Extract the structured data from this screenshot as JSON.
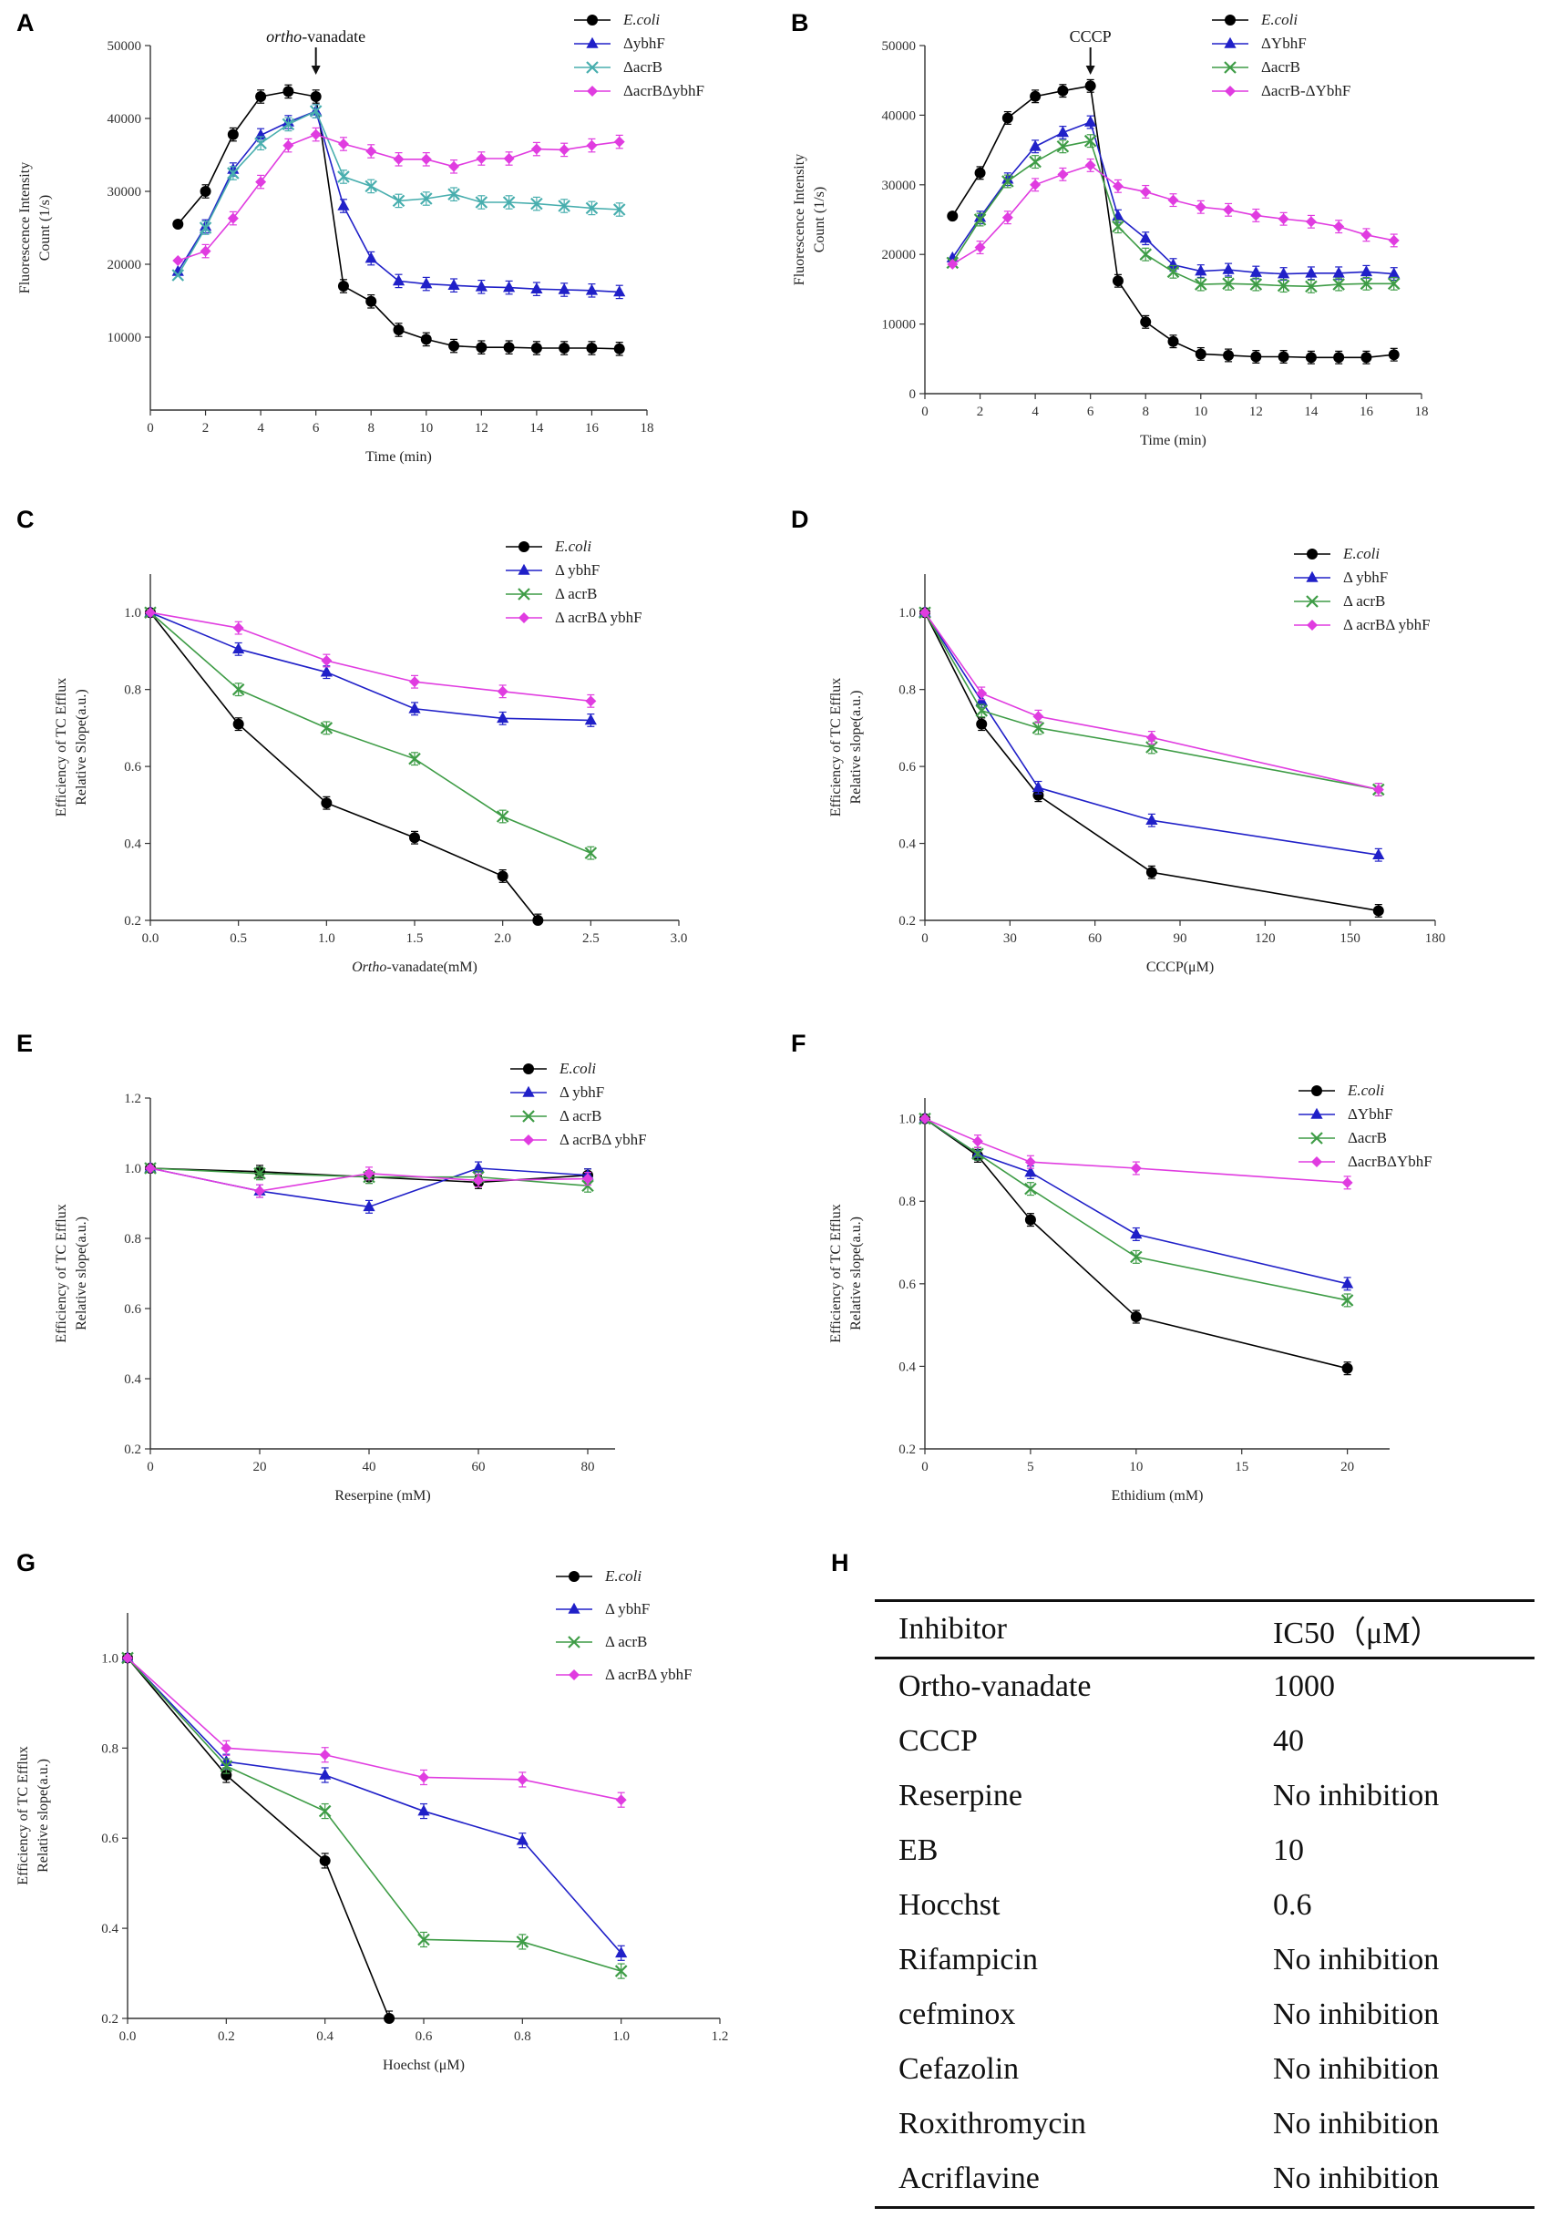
{
  "colors": {
    "E.coli": "#000000",
    "ybhF": "#2020c8",
    "acrB": "#3e9c46",
    "acrB_teal": "#48aeae",
    "double": "#e03ce0"
  },
  "panels": {
    "A": "A",
    "B": "B",
    "C": "C",
    "D": "D",
    "E": "E",
    "F": "F",
    "G": "G",
    "H": "H"
  },
  "chart_data": [
    {
      "panel": "A",
      "type": "line",
      "annotation": "ortho-vanadate",
      "xlabel": "Time (min)",
      "ylabel": [
        "Fluorescence Intensity",
        "Count (1/s)"
      ],
      "xlim": [
        0,
        18
      ],
      "ylim": [
        0,
        50000
      ],
      "xticks": [
        0,
        2,
        4,
        6,
        8,
        10,
        12,
        14,
        16,
        18
      ],
      "yticks": [
        10000,
        20000,
        30000,
        40000,
        50000
      ],
      "series": [
        {
          "name": "E.coli",
          "italic": true,
          "color": "#000000",
          "marker": "circle",
          "x": [
            1,
            2,
            3,
            4,
            5,
            6,
            7,
            8,
            9,
            10,
            11,
            12,
            13,
            14,
            15,
            16,
            17
          ],
          "y": [
            25500,
            30000,
            37800,
            43000,
            43700,
            43000,
            17000,
            14900,
            11000,
            9700,
            8800,
            8600,
            8600,
            8500,
            8500,
            8500,
            8400
          ]
        },
        {
          "name": "ΔybhF",
          "color": "#2020c8",
          "marker": "triangle",
          "x": [
            1,
            2,
            3,
            4,
            5,
            6,
            7,
            8,
            9,
            10,
            11,
            12,
            13,
            14,
            15,
            16,
            17
          ],
          "y": [
            19000,
            25200,
            33000,
            37700,
            39500,
            41000,
            28000,
            20800,
            17700,
            17300,
            17100,
            16900,
            16800,
            16600,
            16500,
            16400,
            16200
          ]
        },
        {
          "name": "ΔacrB",
          "color": "#48aeae",
          "marker": "x",
          "x": [
            1,
            2,
            3,
            4,
            5,
            6,
            7,
            8,
            9,
            10,
            11,
            12,
            13,
            14,
            15,
            16,
            17
          ],
          "y": [
            18500,
            25000,
            32500,
            36600,
            39200,
            41000,
            32000,
            30700,
            28700,
            29000,
            29600,
            28500,
            28500,
            28300,
            28000,
            27700,
            27500
          ]
        },
        {
          "name": "ΔacrBΔybhF",
          "color": "#e03ce0",
          "marker": "diamond",
          "x": [
            1,
            2,
            3,
            4,
            5,
            6,
            7,
            8,
            9,
            10,
            11,
            12,
            13,
            14,
            15,
            16,
            17
          ],
          "y": [
            20500,
            21800,
            26300,
            31300,
            36300,
            37800,
            36500,
            35500,
            34400,
            34400,
            33400,
            34500,
            34500,
            35800,
            35700,
            36300,
            36800
          ]
        }
      ]
    },
    {
      "panel": "B",
      "type": "line",
      "annotation": "CCCP",
      "xlabel": "Time (min)",
      "ylabel": [
        "Fluorescence Intensity",
        "Count (1/s)"
      ],
      "xlim": [
        0,
        18
      ],
      "ylim": [
        0,
        50000
      ],
      "xticks": [
        0,
        2,
        4,
        6,
        8,
        10,
        12,
        14,
        16,
        18
      ],
      "yticks": [
        0,
        10000,
        20000,
        30000,
        40000,
        50000
      ],
      "series": [
        {
          "name": "E.coli",
          "italic": true,
          "color": "#000000",
          "marker": "circle",
          "x": [
            1,
            2,
            3,
            4,
            5,
            6,
            7,
            8,
            9,
            10,
            11,
            12,
            13,
            14,
            15,
            16,
            17
          ],
          "y": [
            25500,
            31700,
            39600,
            42700,
            43500,
            44200,
            16200,
            10300,
            7500,
            5700,
            5500,
            5300,
            5300,
            5200,
            5200,
            5200,
            5600
          ]
        },
        {
          "name": "ΔYbhF",
          "color": "#2020c8",
          "marker": "triangle",
          "x": [
            1,
            2,
            3,
            4,
            5,
            6,
            7,
            8,
            9,
            10,
            11,
            12,
            13,
            14,
            15,
            16,
            17
          ],
          "y": [
            19500,
            25300,
            30800,
            35500,
            37500,
            39000,
            25500,
            22300,
            18500,
            17600,
            17800,
            17400,
            17200,
            17300,
            17300,
            17500,
            17200
          ]
        },
        {
          "name": "ΔacrB",
          "color": "#3e9c46",
          "marker": "x",
          "x": [
            1,
            2,
            3,
            4,
            5,
            6,
            7,
            8,
            9,
            10,
            11,
            12,
            13,
            14,
            15,
            16,
            17
          ],
          "y": [
            18800,
            25000,
            30500,
            33300,
            35500,
            36300,
            24000,
            20000,
            17500,
            15700,
            15800,
            15700,
            15500,
            15400,
            15700,
            15800,
            15800
          ]
        },
        {
          "name": "ΔacrB-ΔYbhF",
          "color": "#e03ce0",
          "marker": "diamond",
          "x": [
            1,
            2,
            3,
            4,
            5,
            6,
            7,
            8,
            9,
            10,
            11,
            12,
            13,
            14,
            15,
            16,
            17
          ],
          "y": [
            18600,
            21000,
            25300,
            30000,
            31500,
            32800,
            29800,
            29000,
            27800,
            26800,
            26400,
            25600,
            25100,
            24700,
            24000,
            22800,
            22000
          ]
        }
      ]
    },
    {
      "panel": "C",
      "type": "line",
      "xlabel": "Ortho-vanadate(mM)",
      "ylabel": [
        "Efficiency of TC Efflux",
        "Relative Slope(a.u.)"
      ],
      "xlim": [
        0,
        3
      ],
      "ylim": [
        0.2,
        1.1
      ],
      "xticks": [
        0.0,
        0.5,
        1.0,
        1.5,
        2.0,
        2.5,
        3.0
      ],
      "yticks": [
        0.2,
        0.4,
        0.6,
        0.8,
        1.0
      ],
      "series": [
        {
          "name": "E.coli",
          "italic": true,
          "color": "#000000",
          "marker": "circle",
          "x": [
            0,
            0.5,
            1.0,
            1.5,
            2.0,
            2.2
          ],
          "y": [
            1.0,
            0.71,
            0.505,
            0.415,
            0.315,
            0.2
          ]
        },
        {
          "name": "Δ ybhF",
          "color": "#2020c8",
          "marker": "triangle",
          "x": [
            0,
            0.5,
            1.0,
            1.5,
            2.0,
            2.5
          ],
          "y": [
            1.0,
            0.905,
            0.845,
            0.75,
            0.725,
            0.72
          ]
        },
        {
          "name": "Δ acrB",
          "color": "#3e9c46",
          "marker": "x",
          "x": [
            0,
            0.5,
            1.0,
            1.5,
            2.0,
            2.5
          ],
          "y": [
            1.0,
            0.8,
            0.7,
            0.62,
            0.47,
            0.375
          ]
        },
        {
          "name": "Δ acrBΔ ybhF",
          "color": "#e03ce0",
          "marker": "diamond",
          "x": [
            0,
            0.5,
            1.0,
            1.5,
            2.0,
            2.5
          ],
          "y": [
            1.0,
            0.96,
            0.875,
            0.82,
            0.795,
            0.77
          ]
        }
      ]
    },
    {
      "panel": "D",
      "type": "line",
      "xlabel": "CCCP(μM)",
      "ylabel": [
        "Efficiency of TC Efflux",
        "Relative slope(a.u.)"
      ],
      "xlim": [
        0,
        180
      ],
      "ylim": [
        0.2,
        1.1
      ],
      "xticks": [
        0,
        30,
        60,
        90,
        120,
        150,
        180
      ],
      "yticks": [
        0.2,
        0.4,
        0.6,
        0.8,
        1.0
      ],
      "series": [
        {
          "name": "E.coli",
          "italic": true,
          "color": "#000000",
          "marker": "circle",
          "x": [
            0,
            20,
            40,
            80,
            160
          ],
          "y": [
            1.0,
            0.71,
            0.525,
            0.325,
            0.225
          ]
        },
        {
          "name": "Δ ybhF",
          "color": "#2020c8",
          "marker": "triangle",
          "x": [
            0,
            20,
            40,
            80,
            160
          ],
          "y": [
            1.0,
            0.77,
            0.545,
            0.46,
            0.37
          ]
        },
        {
          "name": "Δ acrB",
          "color": "#3e9c46",
          "marker": "x",
          "x": [
            0,
            20,
            40,
            80,
            160
          ],
          "y": [
            1.0,
            0.745,
            0.7,
            0.65,
            0.54
          ]
        },
        {
          "name": "Δ acrBΔ ybhF",
          "color": "#e03ce0",
          "marker": "diamond",
          "x": [
            0,
            20,
            40,
            80,
            160
          ],
          "y": [
            1.0,
            0.79,
            0.73,
            0.675,
            0.54
          ]
        }
      ]
    },
    {
      "panel": "E",
      "type": "line",
      "xlabel": "Reserpine (mM)",
      "ylabel": [
        "Efficiency of TC Efflux",
        "Relative slope(a.u.)"
      ],
      "xlim": [
        0,
        85
      ],
      "ylim": [
        0.2,
        1.2
      ],
      "xticks": [
        0,
        20,
        40,
        60,
        80
      ],
      "yticks": [
        0.2,
        0.4,
        0.6,
        0.8,
        1.0,
        1.2
      ],
      "series": [
        {
          "name": "E.coli",
          "italic": true,
          "color": "#000000",
          "marker": "circle",
          "x": [
            0,
            20,
            40,
            60,
            80
          ],
          "y": [
            1.0,
            0.99,
            0.975,
            0.96,
            0.98
          ]
        },
        {
          "name": "Δ ybhF",
          "color": "#2020c8",
          "marker": "triangle",
          "x": [
            0,
            20,
            40,
            60,
            80
          ],
          "y": [
            1.0,
            0.935,
            0.89,
            1.0,
            0.98
          ]
        },
        {
          "name": "Δ acrB",
          "color": "#3e9c46",
          "marker": "x",
          "x": [
            0,
            20,
            40,
            60,
            80
          ],
          "y": [
            1.0,
            0.985,
            0.975,
            0.975,
            0.95
          ]
        },
        {
          "name": "Δ acrBΔ ybhF",
          "color": "#e03ce0",
          "marker": "diamond",
          "x": [
            0,
            20,
            40,
            60,
            80
          ],
          "y": [
            1.0,
            0.935,
            0.985,
            0.965,
            0.97
          ]
        }
      ]
    },
    {
      "panel": "F",
      "type": "line",
      "xlabel": "Ethidium (mM)",
      "ylabel": [
        "Efficiency of TC Efflux",
        "Relative slope(a.u.)"
      ],
      "xlim": [
        0,
        22
      ],
      "ylim": [
        0.2,
        1.05
      ],
      "xticks": [
        0,
        5,
        10,
        15,
        20
      ],
      "yticks": [
        0.2,
        0.4,
        0.6,
        0.8,
        1.0
      ],
      "series": [
        {
          "name": "E.coli",
          "italic": true,
          "color": "#000000",
          "marker": "circle",
          "x": [
            0,
            2.5,
            5,
            10,
            20
          ],
          "y": [
            1.0,
            0.91,
            0.755,
            0.52,
            0.395
          ]
        },
        {
          "name": "ΔYbhF",
          "color": "#2020c8",
          "marker": "triangle",
          "x": [
            0,
            2.5,
            5,
            10,
            20
          ],
          "y": [
            1.0,
            0.915,
            0.87,
            0.72,
            0.6
          ]
        },
        {
          "name": "ΔacrB",
          "color": "#3e9c46",
          "marker": "x",
          "x": [
            0,
            2.5,
            5,
            10,
            20
          ],
          "y": [
            1.0,
            0.915,
            0.83,
            0.665,
            0.56
          ]
        },
        {
          "name": "ΔacrBΔYbhF",
          "color": "#e03ce0",
          "marker": "diamond",
          "x": [
            0,
            2.5,
            5,
            10,
            20
          ],
          "y": [
            1.0,
            0.945,
            0.895,
            0.88,
            0.845
          ]
        }
      ]
    },
    {
      "panel": "G",
      "type": "line",
      "xlabel": "Hoechst (μM)",
      "ylabel": [
        "Efficiency of TC Efflux",
        "Relative slope(a.u.)"
      ],
      "xlim": [
        0,
        1.2
      ],
      "ylim": [
        0.2,
        1.1
      ],
      "xticks": [
        0.0,
        0.2,
        0.4,
        0.6,
        0.8,
        1.0,
        1.2
      ],
      "yticks": [
        0.2,
        0.4,
        0.6,
        0.8,
        1.0
      ],
      "series": [
        {
          "name": "E.coli",
          "italic": true,
          "color": "#000000",
          "marker": "circle",
          "x": [
            0,
            0.2,
            0.4,
            0.53
          ],
          "y": [
            1.0,
            0.74,
            0.55,
            0.2
          ]
        },
        {
          "name": "Δ ybhF",
          "color": "#2020c8",
          "marker": "triangle",
          "x": [
            0,
            0.2,
            0.4,
            0.6,
            0.8,
            1.0
          ],
          "y": [
            1.0,
            0.77,
            0.74,
            0.66,
            0.595,
            0.345
          ]
        },
        {
          "name": "Δ acrB",
          "color": "#3e9c46",
          "marker": "x",
          "x": [
            0,
            0.2,
            0.4,
            0.6,
            0.8,
            1.0
          ],
          "y": [
            1.0,
            0.76,
            0.66,
            0.375,
            0.37,
            0.305
          ]
        },
        {
          "name": "Δ acrBΔ ybhF",
          "color": "#e03ce0",
          "marker": "diamond",
          "x": [
            0,
            0.2,
            0.4,
            0.6,
            0.8,
            1.0
          ],
          "y": [
            1.0,
            0.8,
            0.785,
            0.735,
            0.73,
            0.685
          ]
        }
      ]
    },
    {
      "panel": "H",
      "type": "table",
      "columns": [
        "Inhibitor",
        "IC50（μM）"
      ],
      "rows": [
        [
          "Ortho-vanadate",
          "1000"
        ],
        [
          "CCCP",
          "40"
        ],
        [
          "Reserpine",
          "No inhibition"
        ],
        [
          "EB",
          "10"
        ],
        [
          "Hocchst",
          "0.6"
        ],
        [
          "Rifampicin",
          "No inhibition"
        ],
        [
          "cefminox",
          "No inhibition"
        ],
        [
          "Cefazolin",
          "No inhibition"
        ],
        [
          "Roxithromycin",
          "No inhibition"
        ],
        [
          "Acriflavine",
          "No inhibition"
        ]
      ]
    }
  ]
}
